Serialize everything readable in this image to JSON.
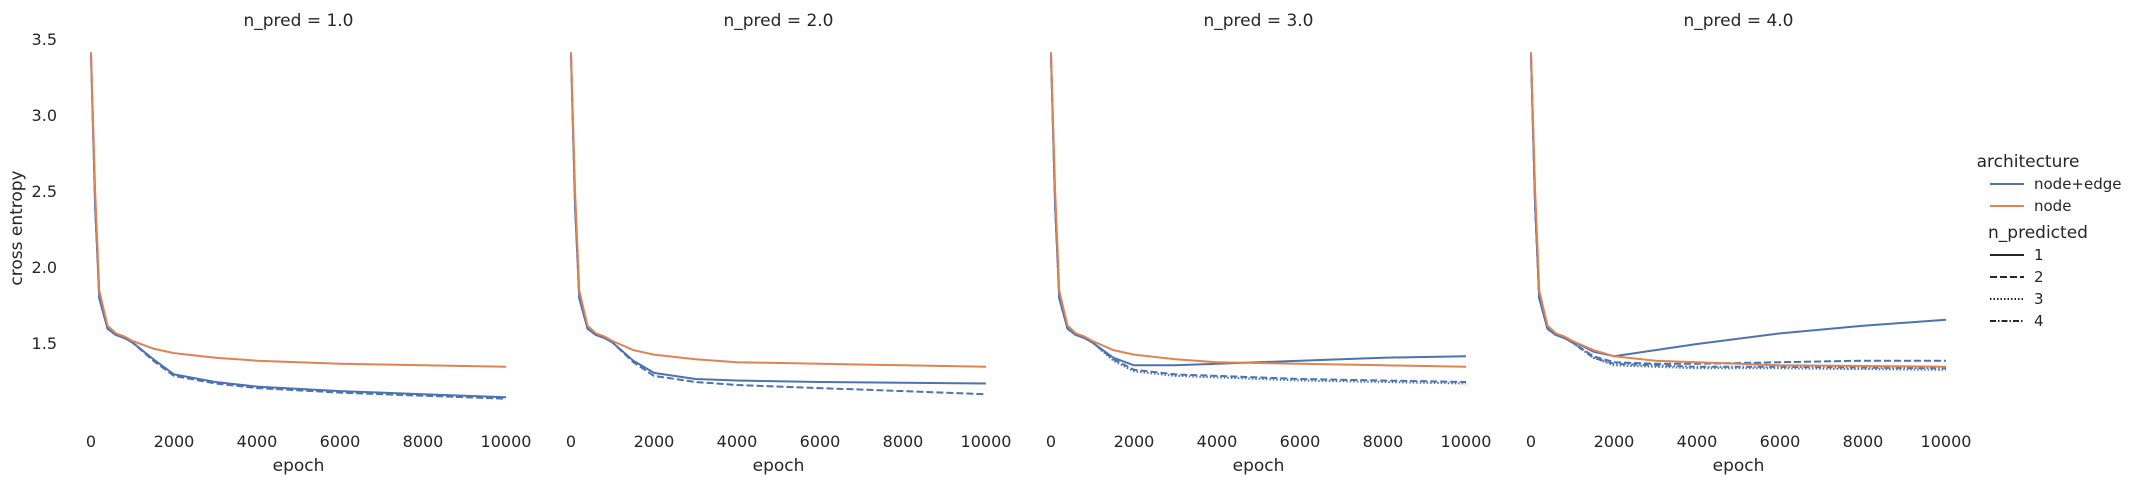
{
  "colors": {
    "node+edge": "#4c72b0",
    "node": "#dd8452",
    "text": "#262626"
  },
  "facet_titles": [
    "n_pred = 1.0",
    "n_pred = 2.0",
    "n_pred = 3.0",
    "n_pred = 4.0"
  ],
  "xlabel": "epoch",
  "ylabel": "cross entropy",
  "x_ticks": [
    "0",
    "2000",
    "4000",
    "6000",
    "8000",
    "10000"
  ],
  "y_ticks": [
    "1.5",
    "2.0",
    "2.5",
    "3.0",
    "3.5"
  ],
  "legend": {
    "architecture_title": "architecture",
    "architecture": [
      {
        "label": "node+edge",
        "color": "#4c72b0"
      },
      {
        "label": "node",
        "color": "#dd8452"
      }
    ],
    "n_predicted_title": "n_predicted",
    "n_predicted": [
      {
        "label": "1",
        "dash": "solid"
      },
      {
        "label": "2",
        "dash": "dashed"
      },
      {
        "label": "3",
        "dash": "dotted"
      },
      {
        "label": "4",
        "dash": "dashdot"
      }
    ]
  },
  "chart_data": [
    {
      "type": "line",
      "title": "n_pred = 1.0",
      "xlabel": "epoch",
      "ylabel": "cross entropy",
      "xlim": [
        0,
        10000
      ],
      "ylim": [
        1.0,
        3.5
      ],
      "grid": false,
      "legend_position": "right",
      "series": [
        {
          "architecture": "node",
          "n_predicted": 1,
          "x": [
            0,
            100,
            200,
            400,
            600,
            800,
            1000,
            1500,
            2000,
            3000,
            4000,
            6000,
            8000,
            10000
          ],
          "y": [
            3.42,
            2.5,
            1.85,
            1.62,
            1.57,
            1.55,
            1.52,
            1.47,
            1.44,
            1.41,
            1.39,
            1.37,
            1.36,
            1.35
          ]
        },
        {
          "architecture": "node+edge",
          "n_predicted": 1,
          "x": [
            0,
            100,
            200,
            400,
            600,
            800,
            1000,
            1500,
            2000,
            3000,
            4000,
            6000,
            8000,
            10000
          ],
          "y": [
            3.4,
            2.4,
            1.8,
            1.6,
            1.56,
            1.54,
            1.51,
            1.4,
            1.3,
            1.25,
            1.22,
            1.19,
            1.17,
            1.15
          ]
        },
        {
          "architecture": "node+edge",
          "n_predicted": 2,
          "x": [
            0,
            100,
            200,
            400,
            600,
            800,
            1000,
            1500,
            2000,
            3000,
            4000,
            6000,
            8000,
            10000
          ],
          "y": [
            3.4,
            2.4,
            1.8,
            1.6,
            1.56,
            1.54,
            1.51,
            1.39,
            1.29,
            1.24,
            1.21,
            1.18,
            1.16,
            1.14
          ]
        }
      ]
    },
    {
      "type": "line",
      "title": "n_pred = 2.0",
      "xlabel": "epoch",
      "ylabel": "",
      "xlim": [
        0,
        10000
      ],
      "ylim": [
        1.0,
        3.5
      ],
      "grid": false,
      "legend_position": "right",
      "series": [
        {
          "architecture": "node",
          "n_predicted": 1,
          "x": [
            0,
            100,
            200,
            400,
            600,
            800,
            1000,
            1500,
            2000,
            3000,
            4000,
            6000,
            8000,
            10000
          ],
          "y": [
            3.42,
            2.5,
            1.85,
            1.62,
            1.57,
            1.55,
            1.52,
            1.46,
            1.43,
            1.4,
            1.38,
            1.37,
            1.36,
            1.35
          ]
        },
        {
          "architecture": "node+edge",
          "n_predicted": 1,
          "x": [
            0,
            100,
            200,
            400,
            600,
            800,
            1000,
            1500,
            2000,
            3000,
            4000,
            6000,
            8000,
            10000
          ],
          "y": [
            3.4,
            2.4,
            1.8,
            1.6,
            1.56,
            1.54,
            1.51,
            1.39,
            1.31,
            1.27,
            1.26,
            1.25,
            1.245,
            1.24
          ]
        },
        {
          "architecture": "node+edge",
          "n_predicted": 2,
          "x": [
            0,
            100,
            200,
            400,
            600,
            800,
            1000,
            1500,
            2000,
            3000,
            4000,
            6000,
            8000,
            10000
          ],
          "y": [
            3.4,
            2.4,
            1.8,
            1.6,
            1.56,
            1.54,
            1.51,
            1.38,
            1.29,
            1.25,
            1.23,
            1.21,
            1.19,
            1.17
          ]
        }
      ]
    },
    {
      "type": "line",
      "title": "n_pred = 3.0",
      "xlabel": "epoch",
      "ylabel": "",
      "xlim": [
        0,
        10000
      ],
      "ylim": [
        1.0,
        3.5
      ],
      "grid": false,
      "legend_position": "right",
      "series": [
        {
          "architecture": "node",
          "n_predicted": 1,
          "x": [
            0,
            100,
            200,
            400,
            600,
            800,
            1000,
            1500,
            2000,
            3000,
            4000,
            6000,
            8000,
            10000
          ],
          "y": [
            3.42,
            2.5,
            1.85,
            1.62,
            1.57,
            1.55,
            1.52,
            1.46,
            1.43,
            1.4,
            1.38,
            1.37,
            1.36,
            1.35
          ]
        },
        {
          "architecture": "node+edge",
          "n_predicted": 1,
          "x": [
            0,
            100,
            200,
            400,
            600,
            800,
            1000,
            1500,
            2000,
            3000,
            4000,
            6000,
            8000,
            10000
          ],
          "y": [
            3.4,
            2.4,
            1.8,
            1.6,
            1.56,
            1.54,
            1.51,
            1.41,
            1.36,
            1.36,
            1.37,
            1.39,
            1.41,
            1.42
          ]
        },
        {
          "architecture": "node+edge",
          "n_predicted": 2,
          "x": [
            0,
            100,
            200,
            400,
            600,
            800,
            1000,
            1500,
            2000,
            3000,
            4000,
            6000,
            8000,
            10000
          ],
          "y": [
            3.4,
            2.4,
            1.8,
            1.6,
            1.56,
            1.54,
            1.51,
            1.4,
            1.33,
            1.3,
            1.29,
            1.27,
            1.26,
            1.25
          ]
        },
        {
          "architecture": "node+edge",
          "n_predicted": 3,
          "x": [
            0,
            100,
            200,
            400,
            600,
            800,
            1000,
            1500,
            2000,
            3000,
            4000,
            6000,
            8000,
            10000
          ],
          "y": [
            3.4,
            2.4,
            1.8,
            1.6,
            1.56,
            1.54,
            1.51,
            1.39,
            1.32,
            1.29,
            1.28,
            1.26,
            1.25,
            1.24
          ]
        }
      ]
    },
    {
      "type": "line",
      "title": "n_pred = 4.0",
      "xlabel": "epoch",
      "ylabel": "",
      "xlim": [
        0,
        10000
      ],
      "ylim": [
        1.0,
        3.5
      ],
      "grid": false,
      "legend_position": "right",
      "series": [
        {
          "architecture": "node",
          "n_predicted": 1,
          "x": [
            0,
            100,
            200,
            400,
            600,
            800,
            1000,
            1500,
            2000,
            3000,
            4000,
            6000,
            8000,
            10000
          ],
          "y": [
            3.42,
            2.5,
            1.85,
            1.62,
            1.57,
            1.55,
            1.52,
            1.46,
            1.42,
            1.39,
            1.38,
            1.36,
            1.355,
            1.35
          ]
        },
        {
          "architecture": "node+edge",
          "n_predicted": 1,
          "x": [
            0,
            100,
            200,
            400,
            600,
            800,
            1000,
            1500,
            2000,
            3000,
            4000,
            6000,
            8000,
            10000
          ],
          "y": [
            3.4,
            2.4,
            1.8,
            1.6,
            1.56,
            1.54,
            1.52,
            1.45,
            1.42,
            1.46,
            1.5,
            1.57,
            1.62,
            1.66
          ]
        },
        {
          "architecture": "node+edge",
          "n_predicted": 2,
          "x": [
            0,
            100,
            200,
            400,
            600,
            800,
            1000,
            1500,
            2000,
            3000,
            4000,
            6000,
            8000,
            10000
          ],
          "y": [
            3.4,
            2.4,
            1.8,
            1.6,
            1.56,
            1.54,
            1.51,
            1.42,
            1.38,
            1.37,
            1.37,
            1.38,
            1.39,
            1.39
          ]
        },
        {
          "architecture": "node+edge",
          "n_predicted": 3,
          "x": [
            0,
            100,
            200,
            400,
            600,
            800,
            1000,
            1500,
            2000,
            3000,
            4000,
            6000,
            8000,
            10000
          ],
          "y": [
            3.4,
            2.4,
            1.8,
            1.6,
            1.56,
            1.54,
            1.51,
            1.41,
            1.36,
            1.35,
            1.34,
            1.34,
            1.335,
            1.33
          ]
        },
        {
          "architecture": "node+edge",
          "n_predicted": 4,
          "x": [
            0,
            100,
            200,
            400,
            600,
            800,
            1000,
            1500,
            2000,
            3000,
            4000,
            6000,
            8000,
            10000
          ],
          "y": [
            3.4,
            2.4,
            1.8,
            1.6,
            1.56,
            1.54,
            1.51,
            1.41,
            1.37,
            1.36,
            1.35,
            1.35,
            1.345,
            1.34
          ]
        }
      ]
    }
  ]
}
